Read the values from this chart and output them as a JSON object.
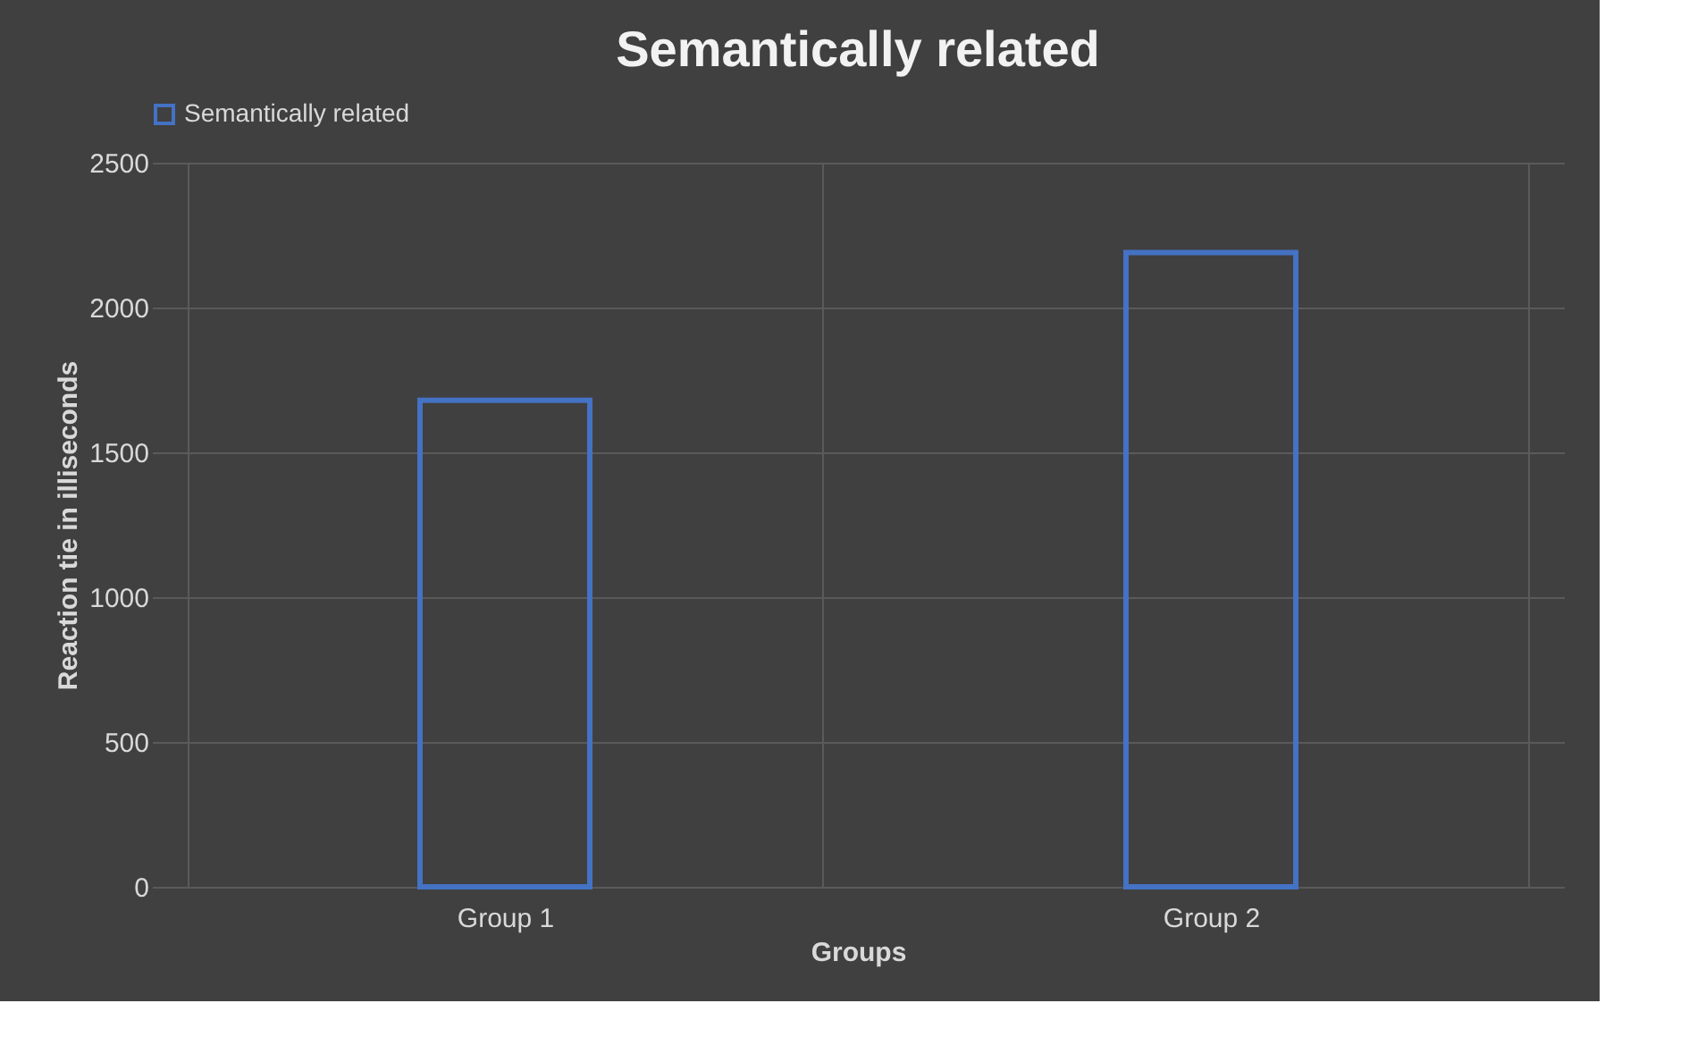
{
  "chart_data": {
    "type": "bar",
    "title": "Semantically related",
    "xlabel": "Groups",
    "ylabel": "Reaction tie in illiseconds",
    "categories": [
      "Group 1",
      "Group 2"
    ],
    "series": [
      {
        "name": "Semantically related",
        "color": "#4472c4",
        "values": [
          1680,
          2190
        ]
      }
    ],
    "ylim": [
      0,
      2500
    ],
    "yticks": [
      0,
      500,
      1000,
      1500,
      2000,
      2500
    ],
    "grid": true,
    "legend": "top"
  }
}
